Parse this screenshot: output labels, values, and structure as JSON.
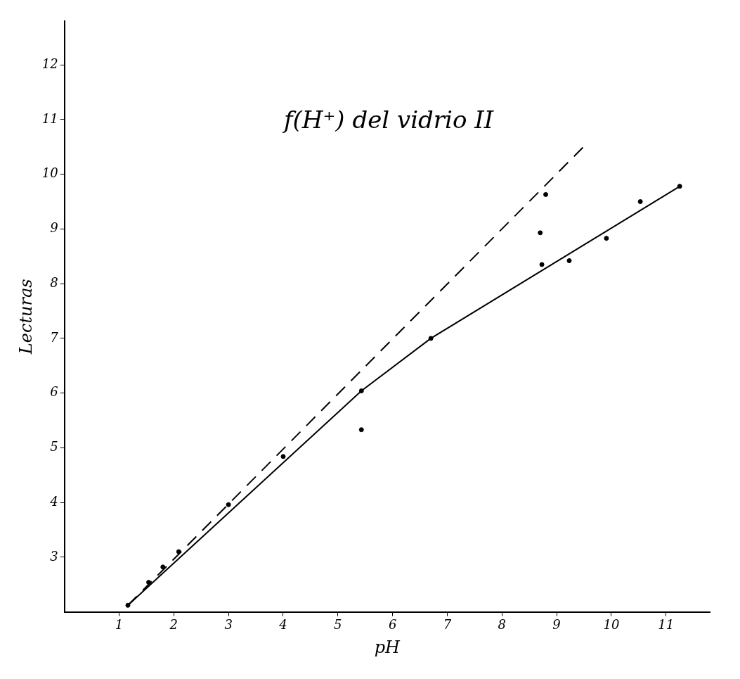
{
  "chart_data": {
    "type": "scatter",
    "title": "f(H⁺) del vidrio II",
    "x_label": "pH",
    "y_label": "Lecturas",
    "xlim": [
      0,
      11.8
    ],
    "ylim": [
      2,
      12.8
    ],
    "xticks": [
      1,
      2,
      3,
      4,
      5,
      6,
      7,
      8,
      9,
      10,
      11
    ],
    "yticks": [
      3,
      4,
      5,
      6,
      7,
      8,
      9,
      10,
      11,
      12
    ],
    "grid": false,
    "series": [
      {
        "type": "scatter",
        "marker": "circle",
        "color": "#000000",
        "x": [
          1.16,
          1.54,
          1.8,
          2.09,
          3.0,
          4.0,
          5.43,
          5.43,
          6.7,
          8.7,
          8.73,
          8.8,
          9.23,
          9.91,
          10.53,
          11.25
        ],
        "values": [
          2.12,
          2.54,
          2.82,
          3.1,
          3.96,
          4.84,
          6.04,
          5.33,
          7.0,
          8.93,
          8.35,
          9.63,
          8.42,
          8.83,
          9.5,
          9.78
        ]
      },
      {
        "type": "line",
        "marker": "none",
        "line_style": "solid",
        "color": "#000000",
        "x": [
          1.16,
          5.43,
          6.7,
          11.25
        ],
        "values": [
          2.12,
          6.04,
          7.0,
          9.78
        ]
      },
      {
        "type": "line",
        "marker": "none",
        "line_style": "dashed",
        "color": "#000000",
        "x": [
          1.16,
          9.52
        ],
        "values": [
          2.12,
          10.53
        ]
      }
    ]
  }
}
